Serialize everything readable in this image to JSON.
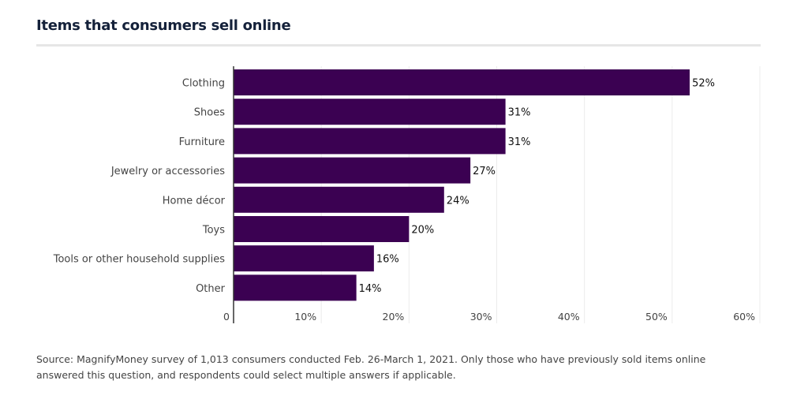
{
  "chart_data": {
    "type": "bar",
    "orientation": "horizontal",
    "title": "Items that consumers sell online",
    "categories": [
      "Clothing",
      "Shoes",
      "Furniture",
      "Jewelry or accessories",
      "Home décor",
      "Toys",
      "Tools or other household supplies",
      "Other"
    ],
    "values": [
      52,
      31,
      31,
      27,
      24,
      20,
      16,
      14
    ],
    "data_labels": [
      "52%",
      "31%",
      "31%",
      "27%",
      "24%",
      "20%",
      "16%",
      "14%"
    ],
    "xlim": [
      0,
      60
    ],
    "x_ticks": [
      0,
      10,
      20,
      30,
      40,
      50,
      60
    ],
    "x_tick_labels": [
      "0",
      "10%",
      "20%",
      "30%",
      "40%",
      "50%",
      "60%"
    ],
    "grid": "vertical",
    "bar_color": "#3b0152",
    "xlabel": "",
    "ylabel": ""
  },
  "source": "Source: MagnifyMoney survey of 1,013 consumers conducted Feb. 26-March 1, 2021. Only those who have previously sold items online answered this question, and respondents could select multiple answers if applicable."
}
